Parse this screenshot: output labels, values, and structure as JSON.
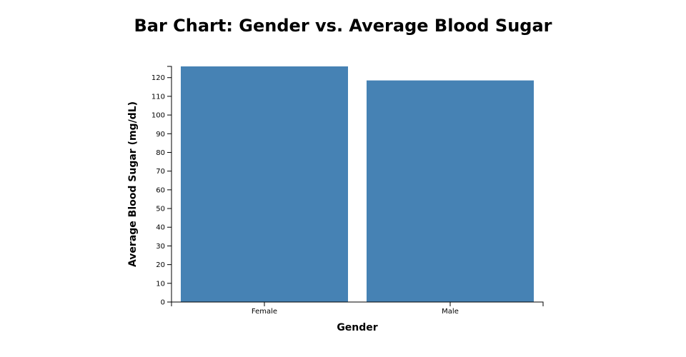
{
  "chart_data": {
    "type": "bar",
    "title": "Bar Chart: Gender vs. Average Blood Sugar",
    "xlabel": "Gender",
    "ylabel": "Average Blood Sugar (mg/dL)",
    "categories": [
      "Female",
      "Male"
    ],
    "values": [
      126,
      118.5
    ],
    "ylim": [
      0,
      126
    ],
    "yticks": [
      0,
      10,
      20,
      30,
      40,
      50,
      60,
      70,
      80,
      90,
      100,
      110,
      120
    ],
    "bar_color": "#4682b4",
    "grid": false,
    "legend": "none"
  }
}
